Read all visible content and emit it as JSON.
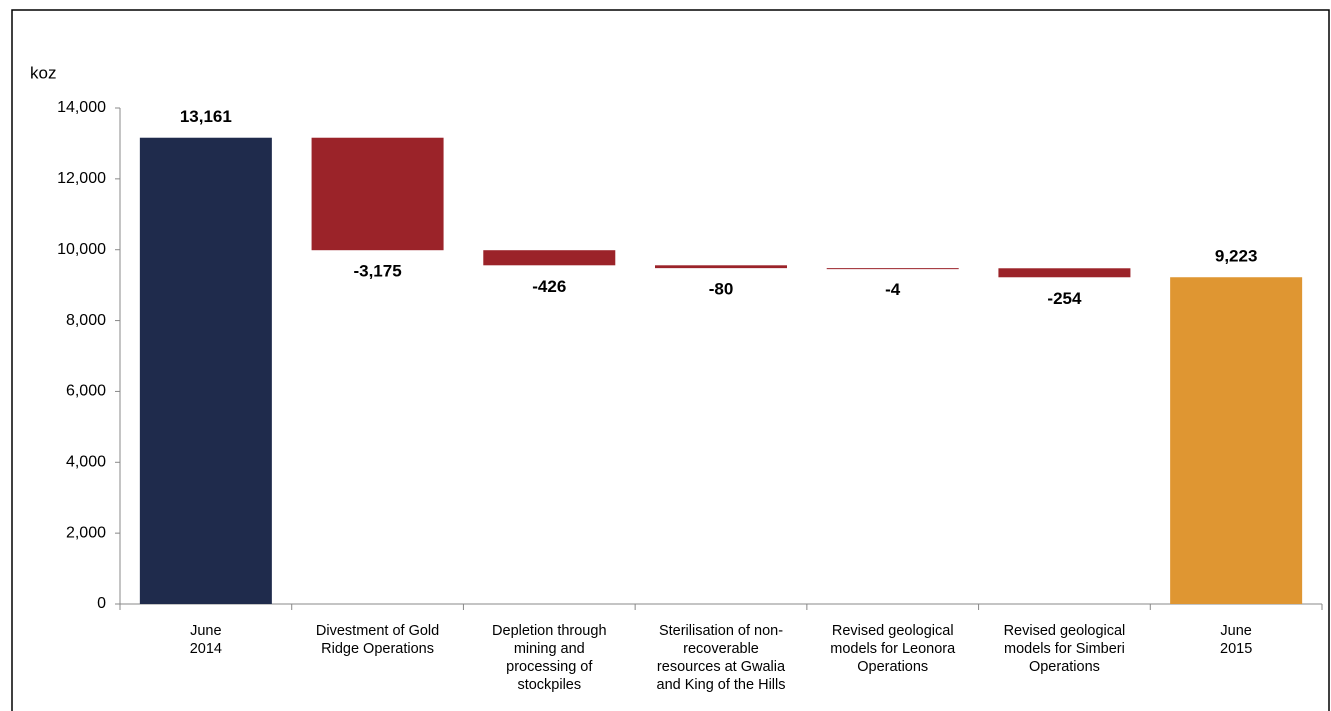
{
  "chart_data": {
    "type": "waterfall",
    "y_label": "koz",
    "categories": [
      "June\n2014",
      "Divestment of Gold\nRidge Operations",
      "Depletion through\nmining and\nprocessing of\nstockpiles",
      "Sterilisation of non-\nrecoverable\nresources at Gwalia\nand King of the Hills",
      "Revised geological\nmodels for Leonora\nOperations",
      "Revised geological\nmodels for Simberi\nOperations",
      "June\n2015"
    ],
    "values": [
      13161,
      -3175,
      -426,
      -80,
      -4,
      -254,
      9223
    ],
    "value_labels": [
      "13,161",
      "-3,175",
      "-426",
      "-80",
      "-4",
      "-254",
      "9,223"
    ],
    "is_total": [
      true,
      false,
      false,
      false,
      false,
      false,
      true
    ],
    "colors": [
      "#1f2b4c",
      "#9b2329",
      "#9b2329",
      "#9b2329",
      "#9b2329",
      "#9b2329",
      "#df9632"
    ],
    "ylim": [
      0,
      14000
    ],
    "yticks": [
      0,
      {
        "value": 2000,
        "label": "2,000"
      },
      {
        "value": 4000,
        "label": "4,000"
      },
      {
        "value": 6000,
        "label": "6,000"
      },
      {
        "value": 8000,
        "label": "8,000"
      },
      {
        "value": 10000,
        "label": "10,000"
      },
      {
        "value": 12000,
        "label": "12,000"
      },
      {
        "value": 14000,
        "label": "14,000"
      }
    ],
    "grid": false
  }
}
